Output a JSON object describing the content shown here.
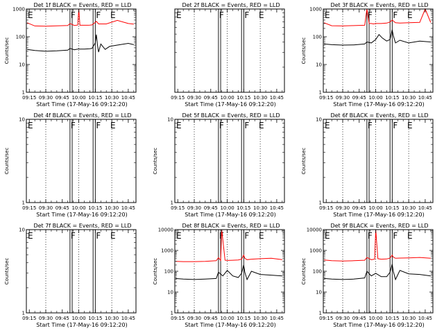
{
  "chart_data": [
    {
      "type": "line",
      "title": "Det 1f BLACK = Events, RED = LLD",
      "xlabel": "Start Time (17-May-16 09:12:20)",
      "ylabel": "Counts/sec",
      "yscale": "log",
      "ylim": [
        1,
        1000
      ],
      "yticks": [
        "1",
        "10",
        "100",
        "1000"
      ],
      "xlim": [
        "09:12:20",
        "10:52:00"
      ],
      "xticks": [
        "09:15",
        "09:30",
        "09:45",
        "10:00",
        "10:15",
        "10:30",
        "10:45"
      ],
      "dotted_lines": [
        "09:30",
        "10:00",
        "10:30"
      ],
      "boundaries": [
        "09:52",
        "09:54",
        "10:13",
        "10:15"
      ],
      "letters": [
        {
          "text": "E",
          "at": "09:13"
        },
        {
          "text": "F",
          "at": "09:52"
        },
        {
          "text": "F",
          "at": "10:15"
        },
        {
          "text": "E",
          "at": "10:28"
        }
      ],
      "series": [
        {
          "color": "#ff0000",
          "x": [
            "09:13",
            "09:20",
            "09:30",
            "09:40",
            "09:50",
            "09:52",
            "09:56",
            "09:59",
            "10:00",
            "10:01",
            "10:05",
            "10:10",
            "10:12",
            "10:15",
            "10:16",
            "10:18",
            "10:25",
            "10:35",
            "10:45",
            "10:50"
          ],
          "y": [
            320,
            245,
            240,
            248,
            255,
            300,
            255,
            265,
            1000,
            260,
            260,
            262,
            268,
            330,
            360,
            290,
            290,
            390,
            300,
            285
          ]
        },
        {
          "color": "#000000",
          "x": [
            "09:13",
            "09:20",
            "09:30",
            "09:40",
            "09:50",
            "09:52",
            "09:56",
            "09:59",
            "10:05",
            "10:10",
            "10:12",
            "10:15",
            "10:16",
            "10:17",
            "10:18",
            "10:20",
            "10:24",
            "10:28",
            "10:35",
            "10:45",
            "10:50"
          ],
          "y": [
            35,
            32,
            30,
            31,
            33,
            38,
            34,
            36,
            36,
            37,
            38,
            60,
            120,
            50,
            28,
            55,
            35,
            45,
            50,
            58,
            52
          ]
        }
      ]
    },
    {
      "type": "line",
      "title": "Det 2f BLACK = Events, RED = LLD",
      "xlabel": "Start Time (17-May-16 09:12:20)",
      "ylabel": "",
      "yscale": "log",
      "ylim": [
        1,
        10
      ],
      "yticks": [],
      "xlim": [
        "09:12:20",
        "10:52:00"
      ],
      "xticks": [
        "09:15",
        "09:30",
        "09:45",
        "10:00",
        "10:15",
        "10:30",
        "10:45"
      ],
      "dotted_lines": [
        "09:30",
        "10:00",
        "10:30"
      ],
      "boundaries": [
        "09:52",
        "09:54",
        "10:13",
        "10:15"
      ],
      "letters": [
        {
          "text": "E",
          "at": "09:13"
        },
        {
          "text": "F",
          "at": "09:52"
        },
        {
          "text": "F",
          "at": "10:15"
        },
        {
          "text": "E",
          "at": "10:28"
        }
      ],
      "series": []
    },
    {
      "type": "line",
      "title": "Det 3f BLACK = Events, RED = LLD",
      "xlabel": "Start Time (17-May-16 09:12:20)",
      "ylabel": "Counts/sec",
      "yscale": "log",
      "ylim": [
        1,
        1000
      ],
      "yticks": [
        "1",
        "10",
        "100",
        "1000"
      ],
      "xlim": [
        "09:12:20",
        "10:52:00"
      ],
      "xticks": [
        "09:15",
        "09:30",
        "09:45",
        "10:00",
        "10:15",
        "10:30",
        "10:45"
      ],
      "dotted_lines": [
        "09:30",
        "10:00",
        "10:30"
      ],
      "boundaries": [
        "09:52",
        "09:54",
        "10:13",
        "10:15"
      ],
      "letters": [
        {
          "text": "E",
          "at": "09:13"
        },
        {
          "text": "F",
          "at": "09:52"
        },
        {
          "text": "F",
          "at": "10:15"
        },
        {
          "text": "E",
          "at": "10:28"
        }
      ],
      "series": [
        {
          "color": "#ff0000",
          "x": [
            "09:13",
            "09:20",
            "09:30",
            "09:40",
            "09:50",
            "09:52",
            "09:54",
            "09:56",
            "09:58",
            "10:00",
            "10:05",
            "10:10",
            "10:13",
            "10:15",
            "10:18",
            "10:22",
            "10:30",
            "10:40",
            "10:45",
            "10:50"
          ],
          "y": [
            320,
            250,
            245,
            252,
            260,
            1000,
            300,
            300,
            290,
            300,
            300,
            310,
            340,
            400,
            320,
            310,
            320,
            330,
            1000,
            330
          ]
        },
        {
          "color": "#000000",
          "x": [
            "09:13",
            "09:20",
            "09:30",
            "09:40",
            "09:50",
            "09:52",
            "09:56",
            "10:00",
            "10:03",
            "10:06",
            "10:10",
            "10:13",
            "10:15",
            "10:16",
            "10:18",
            "10:22",
            "10:30",
            "10:40",
            "10:50"
          ],
          "y": [
            55,
            52,
            50,
            51,
            55,
            65,
            60,
            80,
            120,
            90,
            70,
            80,
            180,
            110,
            60,
            75,
            60,
            70,
            65
          ]
        }
      ]
    },
    {
      "type": "line",
      "title": "Det 4f BLACK = Events, RED = LLD",
      "xlabel": "Start Time (17-May-16 09:12:20)",
      "ylabel": "Counts/sec",
      "yscale": "log",
      "ylim": [
        1,
        10
      ],
      "yticks": [
        "1",
        "10"
      ],
      "xlim": [
        "09:12:20",
        "10:52:00"
      ],
      "xticks": [
        "09:15",
        "09:30",
        "09:45",
        "10:00",
        "10:15",
        "10:30",
        "10:45"
      ],
      "dotted_lines": [
        "09:30",
        "10:00",
        "10:30"
      ],
      "boundaries": [
        "09:52",
        "09:54",
        "10:13",
        "10:15"
      ],
      "letters": [
        {
          "text": "E",
          "at": "09:13"
        },
        {
          "text": "F",
          "at": "09:52"
        },
        {
          "text": "F",
          "at": "10:15"
        },
        {
          "text": "E",
          "at": "10:28"
        }
      ],
      "series": []
    },
    {
      "type": "line",
      "title": "Det 5f BLACK = Events, RED = LLD",
      "xlabel": "Start Time (17-May-16 09:12:20)",
      "ylabel": "Counts/sec",
      "yscale": "log",
      "ylim": [
        1,
        10
      ],
      "yticks": [
        "1",
        "10"
      ],
      "xlim": [
        "09:12:20",
        "10:52:00"
      ],
      "xticks": [
        "09:15",
        "09:30",
        "09:45",
        "10:00",
        "10:15",
        "10:30",
        "10:45"
      ],
      "dotted_lines": [
        "09:30",
        "10:00",
        "10:30"
      ],
      "boundaries": [
        "09:52",
        "09:54",
        "10:13",
        "10:15"
      ],
      "letters": [
        {
          "text": "E",
          "at": "09:13"
        },
        {
          "text": "F",
          "at": "09:52"
        },
        {
          "text": "F",
          "at": "10:15"
        },
        {
          "text": "E",
          "at": "10:28"
        }
      ],
      "series": []
    },
    {
      "type": "line",
      "title": "Det 6f BLACK = Events, RED = LLD",
      "xlabel": "Start Time (17-May-16 09:12:20)",
      "ylabel": "Counts/sec",
      "yscale": "log",
      "ylim": [
        1,
        10
      ],
      "yticks": [
        "1",
        "10"
      ],
      "xlim": [
        "09:12:20",
        "10:52:00"
      ],
      "xticks": [
        "09:15",
        "09:30",
        "09:45",
        "10:00",
        "10:15",
        "10:30",
        "10:45"
      ],
      "dotted_lines": [
        "09:30",
        "10:00",
        "10:30"
      ],
      "boundaries": [
        "09:52",
        "09:54",
        "10:13",
        "10:15"
      ],
      "letters": [
        {
          "text": "E",
          "at": "09:13"
        },
        {
          "text": "F",
          "at": "09:52"
        },
        {
          "text": "F",
          "at": "10:15"
        },
        {
          "text": "E",
          "at": "10:28"
        }
      ],
      "series": []
    },
    {
      "type": "line",
      "title": "Det 7f BLACK = Events, RED = LLD",
      "xlabel": "Start Time (17-May-16 09:12:20)",
      "ylabel": "Counts/sec",
      "yscale": "log",
      "ylim": [
        1,
        10
      ],
      "yticks": [
        "1",
        "10"
      ],
      "xlim": [
        "09:12:20",
        "10:52:00"
      ],
      "xticks": [
        "09:15",
        "09:30",
        "09:45",
        "10:00",
        "10:15",
        "10:30",
        "10:45"
      ],
      "dotted_lines": [
        "09:30",
        "10:00",
        "10:30"
      ],
      "boundaries": [
        "09:52",
        "09:54",
        "10:13",
        "10:15"
      ],
      "letters": [
        {
          "text": "E",
          "at": "09:13"
        },
        {
          "text": "F",
          "at": "09:52"
        },
        {
          "text": "F",
          "at": "10:15"
        },
        {
          "text": "E",
          "at": "10:28"
        }
      ],
      "series": []
    },
    {
      "type": "line",
      "title": "Det 8f BLACK = Events, RED = LLD",
      "xlabel": "Start Time (17-May-16 09:12:20)",
      "ylabel": "Counts/sec",
      "yscale": "log",
      "ylim": [
        1,
        10000
      ],
      "yticks": [
        "1",
        "10",
        "100",
        "1000",
        "10000"
      ],
      "xlim": [
        "09:12:20",
        "10:52:00"
      ],
      "xticks": [
        "09:15",
        "09:30",
        "09:45",
        "10:00",
        "10:15",
        "10:30",
        "10:45"
      ],
      "dotted_lines": [
        "09:30",
        "10:00",
        "10:30"
      ],
      "boundaries": [
        "09:52",
        "09:54",
        "10:13",
        "10:15"
      ],
      "letters": [
        {
          "text": "E",
          "at": "09:13"
        },
        {
          "text": "F",
          "at": "09:52"
        },
        {
          "text": "F",
          "at": "10:15"
        },
        {
          "text": "E",
          "at": "10:28"
        }
      ],
      "series": [
        {
          "color": "#ff0000",
          "x": [
            "09:13",
            "09:20",
            "09:30",
            "09:40",
            "09:50",
            "09:52",
            "09:54",
            "09:55",
            "09:58",
            "10:00",
            "10:05",
            "10:10",
            "10:13",
            "10:15",
            "10:16",
            "10:18",
            "10:22",
            "10:30",
            "10:40",
            "10:50"
          ],
          "y": [
            300,
            290,
            290,
            300,
            320,
            450,
            330,
            10000,
            340,
            330,
            340,
            350,
            380,
            600,
            420,
            360,
            380,
            400,
            420,
            360
          ]
        },
        {
          "color": "#000000",
          "x": [
            "09:13",
            "09:20",
            "09:30",
            "09:40",
            "09:50",
            "09:52",
            "09:56",
            "10:00",
            "10:05",
            "10:10",
            "10:13",
            "10:15",
            "10:16",
            "10:18",
            "10:22",
            "10:30",
            "10:40",
            "10:50"
          ],
          "y": [
            45,
            42,
            40,
            42,
            45,
            90,
            60,
            110,
            60,
            50,
            80,
            200,
            90,
            40,
            100,
            70,
            65,
            60
          ]
        }
      ]
    },
    {
      "type": "line",
      "title": "Det 9f BLACK = Events, RED = LLD",
      "xlabel": "Start Time (17-May-16 09:12:20)",
      "ylabel": "Counts/sec",
      "yscale": "log",
      "ylim": [
        1,
        10000
      ],
      "yticks": [
        "1",
        "10",
        "100",
        "1000",
        "10000"
      ],
      "xlim": [
        "09:12:20",
        "10:52:00"
      ],
      "xticks": [
        "09:15",
        "09:30",
        "09:45",
        "10:00",
        "10:15",
        "10:30",
        "10:45"
      ],
      "dotted_lines": [
        "09:30",
        "10:00",
        "10:30"
      ],
      "boundaries": [
        "09:52",
        "09:54",
        "10:13",
        "10:15"
      ],
      "letters": [
        {
          "text": "E",
          "at": "09:13"
        },
        {
          "text": "F",
          "at": "09:52"
        },
        {
          "text": "F",
          "at": "10:15"
        },
        {
          "text": "E",
          "at": "10:28"
        }
      ],
      "series": [
        {
          "color": "#ff0000",
          "x": [
            "09:13",
            "09:20",
            "09:30",
            "09:40",
            "09:50",
            "09:52",
            "09:56",
            "09:59",
            "10:00",
            "10:02",
            "10:05",
            "10:10",
            "10:13",
            "10:15",
            "10:16",
            "10:18",
            "10:22",
            "10:30",
            "10:40",
            "10:50"
          ],
          "y": [
            350,
            320,
            310,
            320,
            340,
            460,
            360,
            380,
            10000,
            400,
            380,
            390,
            430,
            600,
            480,
            420,
            430,
            440,
            460,
            420
          ]
        },
        {
          "color": "#000000",
          "x": [
            "09:13",
            "09:20",
            "09:30",
            "09:40",
            "09:50",
            "09:52",
            "09:56",
            "10:00",
            "10:05",
            "10:10",
            "10:13",
            "10:15",
            "10:16",
            "10:18",
            "10:22",
            "10:30",
            "10:40",
            "10:50"
          ],
          "y": [
            45,
            42,
            40,
            42,
            48,
            100,
            60,
            80,
            55,
            55,
            90,
            220,
            100,
            40,
            110,
            75,
            70,
            60
          ]
        }
      ]
    }
  ]
}
